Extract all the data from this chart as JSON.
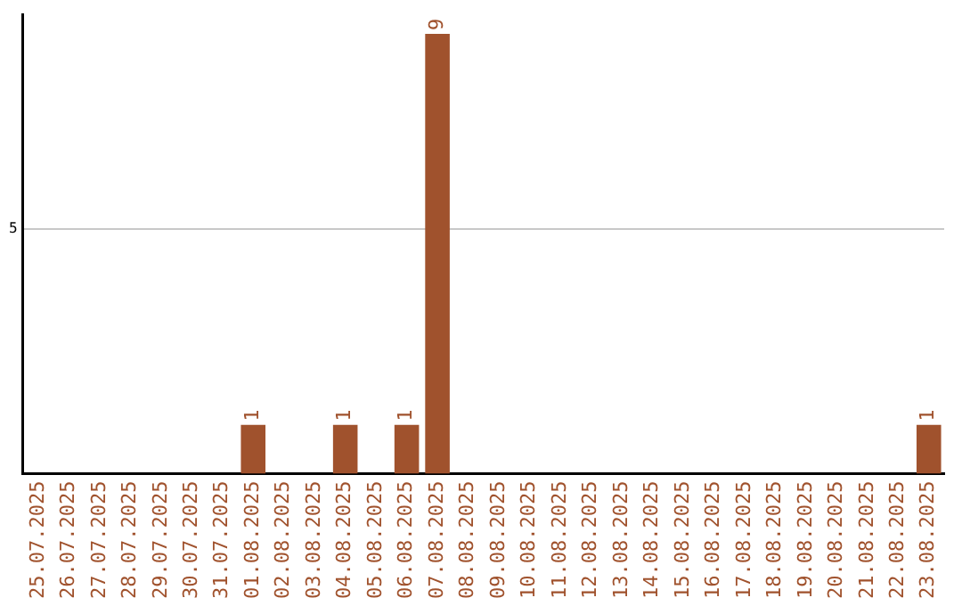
{
  "chart_data": {
    "type": "bar",
    "categories": [
      "25.07.2025",
      "26.07.2025",
      "27.07.2025",
      "28.07.2025",
      "29.07.2025",
      "30.07.2025",
      "31.07.2025",
      "01.08.2025",
      "02.08.2025",
      "03.08.2025",
      "04.08.2025",
      "05.08.2025",
      "06.08.2025",
      "07.08.2025",
      "08.08.2025",
      "09.08.2025",
      "10.08.2025",
      "11.08.2025",
      "12.08.2025",
      "13.08.2025",
      "14.08.2025",
      "15.08.2025",
      "16.08.2025",
      "17.08.2025",
      "18.08.2025",
      "19.08.2025",
      "20.08.2025",
      "21.08.2025",
      "22.08.2025",
      "23.08.2025"
    ],
    "values": [
      0,
      0,
      0,
      0,
      0,
      0,
      0,
      1,
      0,
      0,
      1,
      0,
      1,
      9,
      0,
      0,
      0,
      0,
      0,
      0,
      0,
      0,
      0,
      0,
      0,
      0,
      0,
      0,
      0,
      1
    ],
    "value_labels": [
      null,
      null,
      null,
      null,
      null,
      null,
      null,
      "1",
      null,
      null,
      "1",
      null,
      "1",
      "9",
      null,
      null,
      null,
      null,
      null,
      null,
      null,
      null,
      null,
      null,
      null,
      null,
      null,
      null,
      null,
      "1"
    ],
    "color": "#a0522d",
    "ylim": [
      0,
      9.4
    ],
    "yticks": [
      5
    ],
    "grid": "y",
    "legend": false
  }
}
